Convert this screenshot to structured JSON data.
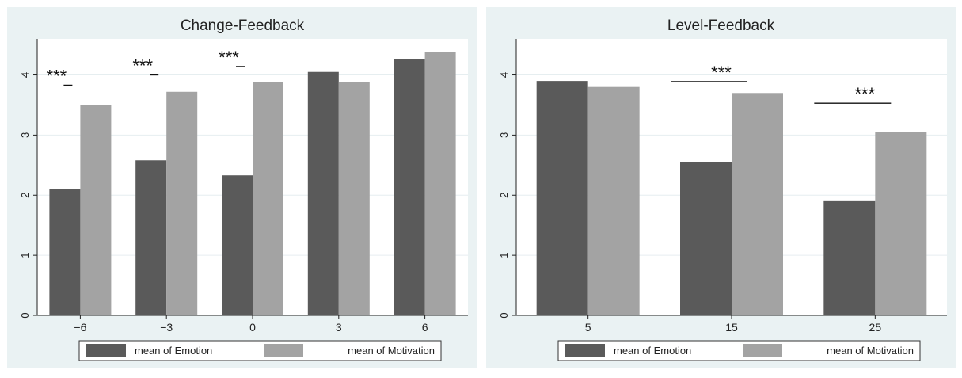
{
  "colors": {
    "panel_bg": "#eaf2f3",
    "plot_bg": "#ffffff",
    "emotion": "#5a5a5a",
    "motivation": "#a3a3a3",
    "axis": "#222222",
    "grid": "#e6eef0"
  },
  "chart_data": [
    {
      "type": "bar",
      "title": "Change-Feedback",
      "categories": [
        "−6",
        "−3",
        "0",
        "3",
        "6"
      ],
      "series": [
        {
          "name": "mean of Emotion",
          "values": [
            2.1,
            2.58,
            2.33,
            4.05,
            4.27
          ]
        },
        {
          "name": "mean of Motivation",
          "values": [
            3.5,
            3.72,
            3.88,
            3.88,
            4.38
          ]
        }
      ],
      "ylim": [
        0,
        4.6
      ],
      "yticks": [
        "0",
        "1",
        "2",
        "3",
        "4"
      ],
      "grid": true,
      "legend_position": "bottom",
      "annotations": [
        {
          "category": 0,
          "text": "***",
          "y": 3.83
        },
        {
          "category": 1,
          "text": "***",
          "y": 4.0
        },
        {
          "category": 2,
          "text": "***",
          "y": 4.14
        }
      ]
    },
    {
      "type": "bar",
      "title": "Level-Feedback",
      "categories": [
        "5",
        "15",
        "25"
      ],
      "series": [
        {
          "name": "mean of Emotion",
          "values": [
            3.9,
            2.55,
            1.9
          ]
        },
        {
          "name": "mean of Motivation",
          "values": [
            3.8,
            3.7,
            3.05
          ]
        }
      ],
      "ylim": [
        0,
        4.6
      ],
      "yticks": [
        "0",
        "1",
        "2",
        "3",
        "4"
      ],
      "grid": true,
      "legend_position": "bottom",
      "annotations": [
        {
          "category": 1,
          "text": "***",
          "y": 3.89
        },
        {
          "category": 2,
          "text": "***",
          "y": 3.53
        }
      ]
    }
  ]
}
